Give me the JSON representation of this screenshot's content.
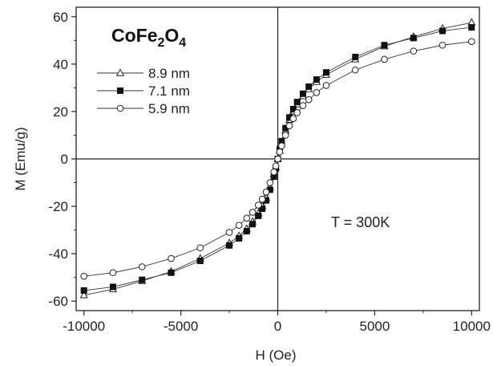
{
  "chart_data": {
    "type": "scatter",
    "title_parts": [
      {
        "text": "CoFe",
        "sub": false
      },
      {
        "text": "2",
        "sub": true
      },
      {
        "text": "O",
        "sub": false
      },
      {
        "text": "4",
        "sub": true
      }
    ],
    "xlabel": "H (Oe)",
    "ylabel": "M (Emu/g)",
    "xlim": [
      -10400,
      10400
    ],
    "ylim": [
      -64,
      64
    ],
    "xticks": [
      -10000,
      -5000,
      0,
      5000,
      10000
    ],
    "yticks": [
      -60,
      -40,
      -20,
      0,
      20,
      40,
      60
    ],
    "grid": false,
    "legend_position": "top-left",
    "annotation": "T = 300K",
    "zero_lines": true,
    "series": [
      {
        "name": "8.9 nm",
        "marker": "triangle-open",
        "x": [
          -10000,
          -8500,
          -7000,
          -5500,
          -4000,
          -2500,
          -2000,
          -1600,
          -1300,
          -1000,
          -800,
          -600,
          -400,
          -200,
          -100,
          0,
          100,
          200,
          400,
          600,
          800,
          1000,
          1300,
          1600,
          2000,
          2500,
          4000,
          5500,
          7000,
          8500,
          10000
        ],
        "y": [
          -57.5,
          -55,
          -51.5,
          -47.5,
          -42,
          -35.5,
          -32.5,
          -29.5,
          -26.5,
          -23,
          -20,
          -16.5,
          -12,
          -6.5,
          -3.5,
          0,
          3.5,
          6.5,
          12,
          16.5,
          20,
          23,
          26.5,
          29.5,
          32.5,
          35.5,
          42,
          47.5,
          51.5,
          55,
          57.5
        ]
      },
      {
        "name": "7.1 nm",
        "marker": "square-filled",
        "x": [
          -10000,
          -8500,
          -7000,
          -5500,
          -4000,
          -2500,
          -2000,
          -1600,
          -1300,
          -1000,
          -800,
          -600,
          -400,
          -200,
          -100,
          0,
          100,
          200,
          400,
          600,
          800,
          1000,
          1300,
          1600,
          2000,
          2500,
          4000,
          5500,
          7000,
          8500,
          10000
        ],
        "y": [
          -55.5,
          -54,
          -51,
          -48,
          -43,
          -36.5,
          -33.5,
          -30.5,
          -27.5,
          -24,
          -21,
          -17.5,
          -13,
          -7.5,
          -4,
          0,
          4,
          7.5,
          13,
          17.5,
          21,
          24,
          27.5,
          30.5,
          33.5,
          36.5,
          43,
          48,
          51,
          54,
          55.5
        ]
      },
      {
        "name": "5.9 nm",
        "marker": "circle-open",
        "x": [
          -10000,
          -8500,
          -7000,
          -5500,
          -4000,
          -2500,
          -2000,
          -1600,
          -1300,
          -1000,
          -800,
          -600,
          -400,
          -200,
          -100,
          0,
          100,
          200,
          400,
          600,
          800,
          1000,
          1300,
          1600,
          2000,
          2500,
          4000,
          5500,
          7000,
          8500,
          10000
        ],
        "y": [
          -49.5,
          -48,
          -45.5,
          -42,
          -37.5,
          -31,
          -28,
          -25,
          -22.5,
          -19.5,
          -17,
          -14,
          -10,
          -5.5,
          -3,
          0,
          3,
          5.5,
          10,
          14,
          17,
          19.5,
          22.5,
          25,
          28,
          31,
          37.5,
          42,
          45.5,
          48,
          49.5
        ]
      }
    ]
  }
}
